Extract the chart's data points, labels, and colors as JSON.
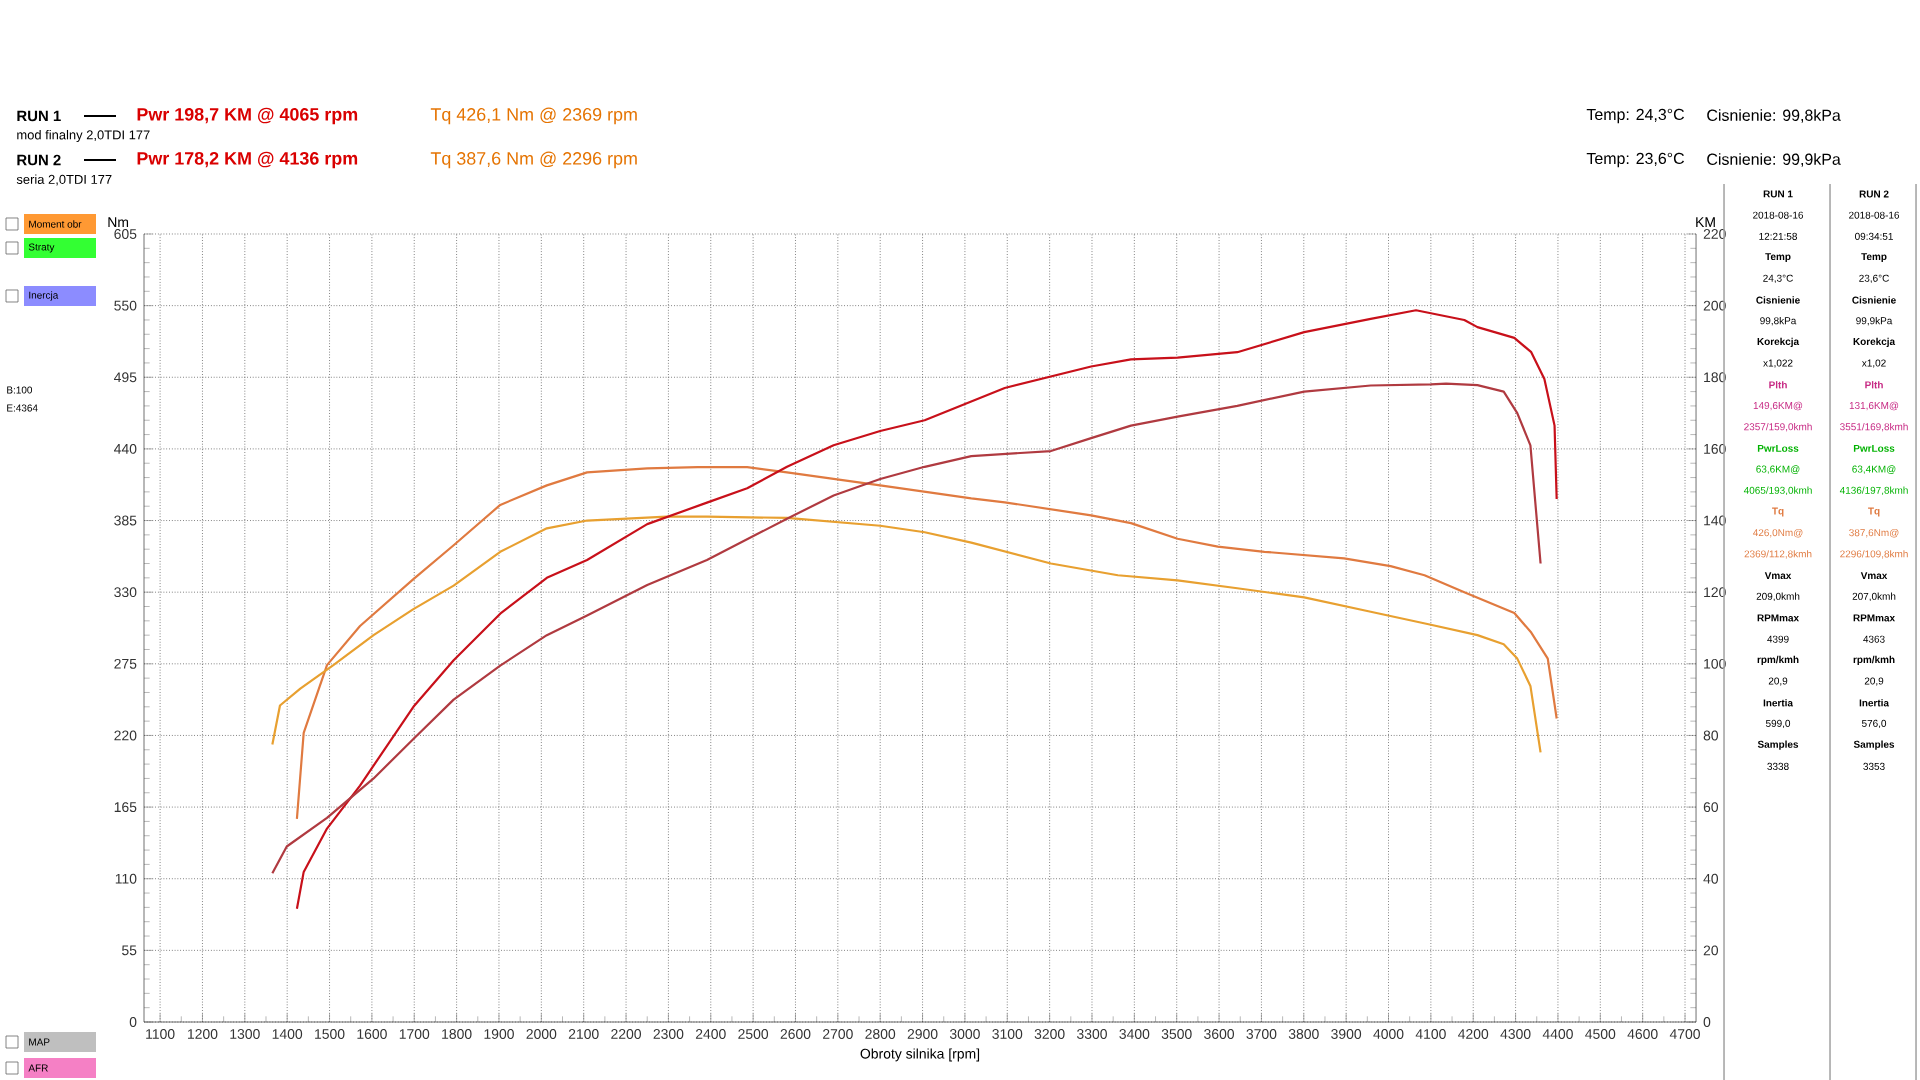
{
  "chart_data": {
    "type": "line",
    "xlabel": "Obroty silnika [rpm]",
    "ylabel": "Nm",
    "y2label": "KM",
    "xlim": [
      1062,
      4726
    ],
    "xticks": [
      1100,
      1200,
      1300,
      1400,
      1500,
      1600,
      1700,
      1800,
      1900,
      2000,
      2100,
      2200,
      2300,
      2400,
      2500,
      2600,
      2700,
      2800,
      2900,
      3000,
      3100,
      3200,
      3300,
      3400,
      3500,
      3600,
      3700,
      3800,
      3900,
      4000,
      4100,
      4200,
      4300,
      4400,
      4500,
      4600,
      4700
    ],
    "ylim": [
      0,
      605
    ],
    "yticks": [
      0,
      55,
      110,
      165,
      220,
      275,
      330,
      385,
      440,
      495,
      550,
      605
    ],
    "y2lim": [
      0,
      220
    ],
    "y2ticks": [
      0,
      20,
      40,
      60,
      80,
      100,
      120,
      140,
      160,
      180,
      200,
      220
    ],
    "grid": true,
    "series": [
      {
        "color": "#c8101a",
        "axis": "y2",
        "x": [
          1423,
          1439,
          1494,
          1572,
          1698,
          1793,
          1903,
          2013,
          2108,
          2250,
          2391,
          2486,
          2580,
          2690,
          2800,
          2905,
          3094,
          3298,
          3392,
          3502,
          3643,
          3801,
          3958,
          4065,
          4179,
          4210,
          4297,
          4337,
          4368,
          4392,
          4397
        ],
        "values": [
          31.6,
          41.9,
          54,
          66,
          88,
          101,
          114,
          124,
          129,
          139,
          145,
          149,
          155,
          161,
          165,
          168,
          177,
          183,
          185,
          185.5,
          187,
          192.6,
          196.3,
          198.7,
          196,
          194,
          191,
          187,
          179.5,
          166.5,
          146
        ]
      },
      {
        "color": "#e07a40",
        "x": [
          1423,
          1439,
          1494,
          1572,
          1698,
          1793,
          1903,
          2013,
          2108,
          2250,
          2369,
          2486,
          2580,
          2690,
          2800,
          3015,
          3094,
          3298,
          3392,
          3502,
          3597,
          3707,
          3895,
          4005,
          4085,
          4179,
          4297,
          4337,
          4376,
          4397
        ],
        "values": [
          156,
          222,
          274,
          304,
          340,
          366,
          397,
          412,
          422,
          425,
          426,
          426,
          422,
          417,
          412,
          402,
          399,
          389,
          383,
          371,
          365,
          361,
          356,
          350,
          343,
          330,
          314,
          299,
          279,
          233
        ]
      },
      {
        "color": "#b03a40",
        "axis": "y2",
        "x": [
          1365,
          1399,
          1494,
          1604,
          1698,
          1793,
          1903,
          2013,
          2108,
          2250,
          2391,
          2580,
          2690,
          2800,
          2905,
          3015,
          3203,
          3298,
          3392,
          3502,
          3643,
          3801,
          3958,
          4100,
          4136,
          4210,
          4272,
          4304,
          4335,
          4359
        ],
        "values": [
          41.5,
          49,
          57,
          68,
          79,
          90,
          99.5,
          108,
          113.5,
          122,
          129,
          140.5,
          147,
          151.6,
          155,
          158,
          159.4,
          163,
          166.5,
          169,
          172,
          176,
          177.7,
          178,
          178.2,
          177.8,
          176,
          170,
          161,
          128
        ]
      },
      {
        "color": "#e8a030",
        "x": [
          1365,
          1383,
          1431,
          1509,
          1604,
          1698,
          1793,
          1903,
          2013,
          2108,
          2296,
          2391,
          2580,
          2690,
          2800,
          2905,
          3015,
          3203,
          3361,
          3502,
          3643,
          3801,
          3958,
          4100,
          4210,
          4272,
          4304,
          4335,
          4359
        ],
        "values": [
          213,
          243,
          256,
          274,
          297,
          317,
          335,
          361,
          379,
          385,
          388,
          388,
          387,
          384,
          381,
          376,
          368,
          352,
          343,
          339,
          333,
          326,
          315,
          305,
          297,
          290,
          279,
          258,
          207
        ]
      }
    ],
    "annotations": [
      "RUN 1",
      "Pwr  198,7 KM @ 4065 rpm",
      "Tq  426,1 Nm @ 2369 rpm",
      "mod finalny 2,0TDI 177",
      "Temp: 24,3°C",
      "Cisnienie: 99,8kPa",
      "RUN 2",
      "Pwr  178,2 KM @ 4136 rpm",
      "Tq  387,6 Nm @ 2296 rpm",
      "seria 2,0TDI 177",
      "Temp: 23,6°C",
      "Cisnienie: 99,9kPa",
      "RUN 1",
      "2018-08-16",
      "12:21:58",
      "Temp",
      "24,3°C",
      "Cisnienie",
      "99,8kPa",
      "Korekcja",
      "x1,022",
      "Plth",
      "149,6KM@",
      "2357/159,0kmh",
      "PwrLoss",
      "63,6KM@",
      "4065/193,0kmh",
      "Tq",
      "426,0Nm@",
      "2369/112,8kmh",
      "Vmax",
      "209,0kmh",
      "RPMmax",
      "4399",
      "rpm/kmh",
      "20,9",
      "Inertia",
      "599,0",
      "Samples",
      "3338",
      "RUN 2",
      "2018-08-16",
      "09:34:51",
      "Temp",
      "23,6°C",
      "Cisnienie",
      "99,9kPa",
      "Korekcja",
      "x1,02",
      "Plth",
      "131,6KM@",
      "3551/169,8kmh",
      "PwrLoss",
      "63,4KM@",
      "4136/197,8kmh",
      "Tq",
      "387,6Nm@",
      "2296/109,8kmh",
      "Vmax",
      "207,0kmh",
      "RPMmax",
      "4363",
      "rpm/kmh",
      "20,9",
      "Inertia",
      "576,0",
      "Samples",
      "3353",
      "Moment obr",
      "Straty",
      "Inercja",
      "B:100",
      "E:4364",
      "MAP",
      "AFR"
    ]
  }
}
